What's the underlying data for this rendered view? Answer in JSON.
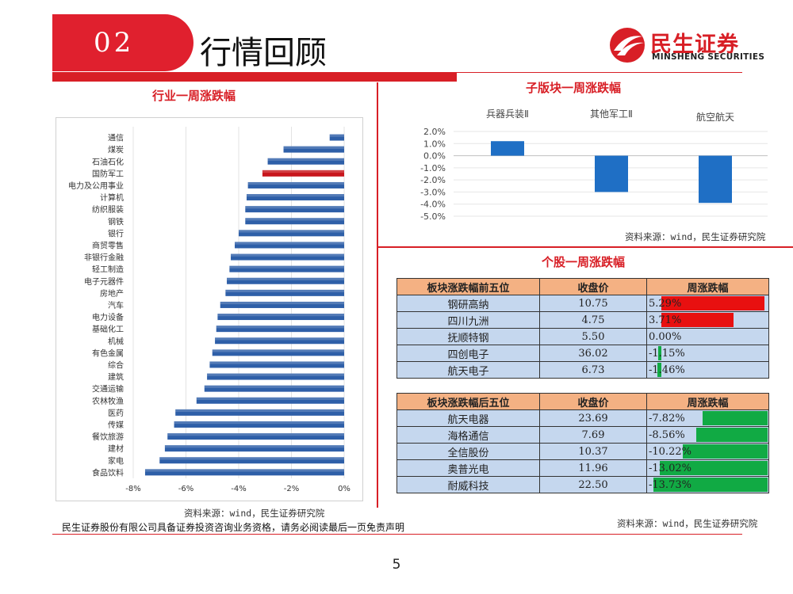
{
  "header": {
    "section_number": "02",
    "title": "行情回顾",
    "logo_cn": "民生证券",
    "logo_en": "MINSHENG SECURITIES"
  },
  "footer": {
    "disclaimer": "民生证券股份有限公司具备证券投资咨询业务资格，请务必阅读最后一页免责声明",
    "page_number": "5"
  },
  "left_panel": {
    "title": "行业一周涨跌幅",
    "source": "资料来源：wind，民生证券研究院"
  },
  "sub_panel": {
    "title": "子版块一周涨跌幅",
    "source": "资料来源：wind，民生证券研究院"
  },
  "stock_panel": {
    "title": "个股一周涨跌幅",
    "source": "资料来源：wind，民生证券研究院",
    "top_table": {
      "headers": [
        "板块涨跌幅前五位",
        "收盘价",
        "周涨跌幅"
      ],
      "rows": [
        {
          "name": "钢研高纳",
          "price": "10.75",
          "change": "5.29%",
          "value": 5.29
        },
        {
          "name": "四川九洲",
          "price": "4.75",
          "change": "3.71%",
          "value": 3.71
        },
        {
          "name": "抚顺特钢",
          "price": "5.50",
          "change": "0.00%",
          "value": 0.0
        },
        {
          "name": "四创电子",
          "price": "36.02",
          "change": "-1.15%",
          "value": -1.15
        },
        {
          "name": "航天电子",
          "price": "6.73",
          "change": "-1.46%",
          "value": -1.46
        }
      ]
    },
    "bottom_table": {
      "headers": [
        "板块涨跌幅后五位",
        "收盘价",
        "周涨跌幅"
      ],
      "rows": [
        {
          "name": "航天电器",
          "price": "23.69",
          "change": "-7.82%",
          "value": -7.82
        },
        {
          "name": "海格通信",
          "price": "7.69",
          "change": "-8.56%",
          "value": -8.56
        },
        {
          "name": "全信股份",
          "price": "10.37",
          "change": "-10.22%",
          "value": -10.22
        },
        {
          "name": "奥普光电",
          "price": "11.96",
          "change": "-13.02%",
          "value": -13.02
        },
        {
          "name": "耐威科技",
          "price": "22.50",
          "change": "-13.73%",
          "value": -13.73
        }
      ]
    },
    "colors": {
      "up": "#e81010",
      "down": "#11aa44"
    }
  },
  "chart_data": [
    {
      "type": "bar",
      "orientation": "horizontal",
      "categories": [
        "通信",
        "煤炭",
        "石油石化",
        "国防军工",
        "电力及公用事业",
        "计算机",
        "纺织服装",
        "钢铁",
        "银行",
        "商贸零售",
        "非银行金融",
        "轻工制造",
        "电子元器件",
        "房地产",
        "汽车",
        "电力设备",
        "基础化工",
        "机械",
        "有色金属",
        "综合",
        "建筑",
        "交通运输",
        "农林牧渔",
        "医药",
        "传媒",
        "餐饮旅游",
        "建材",
        "家电",
        "食品饮料"
      ],
      "values": [
        -0.55,
        -2.3,
        -2.9,
        -3.1,
        -3.65,
        -3.7,
        -3.75,
        -3.75,
        -4.0,
        -4.15,
        -4.3,
        -4.35,
        -4.45,
        -4.5,
        -4.7,
        -4.8,
        -4.85,
        -4.9,
        -5.0,
        -5.1,
        -5.2,
        -5.3,
        -5.6,
        -6.4,
        -6.45,
        -6.7,
        -6.8,
        -7.0,
        -7.55
      ],
      "highlight": "国防军工",
      "xlim": [
        -8,
        0
      ],
      "xticks": [
        "-8%",
        "-6%",
        "-4%",
        "-2%",
        "0%"
      ],
      "colors": {
        "bar": "#2e5fa8",
        "highlight": "#c8161d"
      }
    },
    {
      "type": "bar",
      "categories": [
        "兵器兵装Ⅱ",
        "其他军工Ⅱ",
        "航空航天"
      ],
      "values": [
        1.2,
        -3.0,
        -3.9
      ],
      "ylim": [
        -5,
        2
      ],
      "yticks": [
        "2.0%",
        "1.0%",
        "0.0%",
        "-1.0%",
        "-2.0%",
        "-3.0%",
        "-4.0%",
        "-5.0%"
      ],
      "colors": {
        "bar": "#1f6fc5"
      }
    }
  ]
}
